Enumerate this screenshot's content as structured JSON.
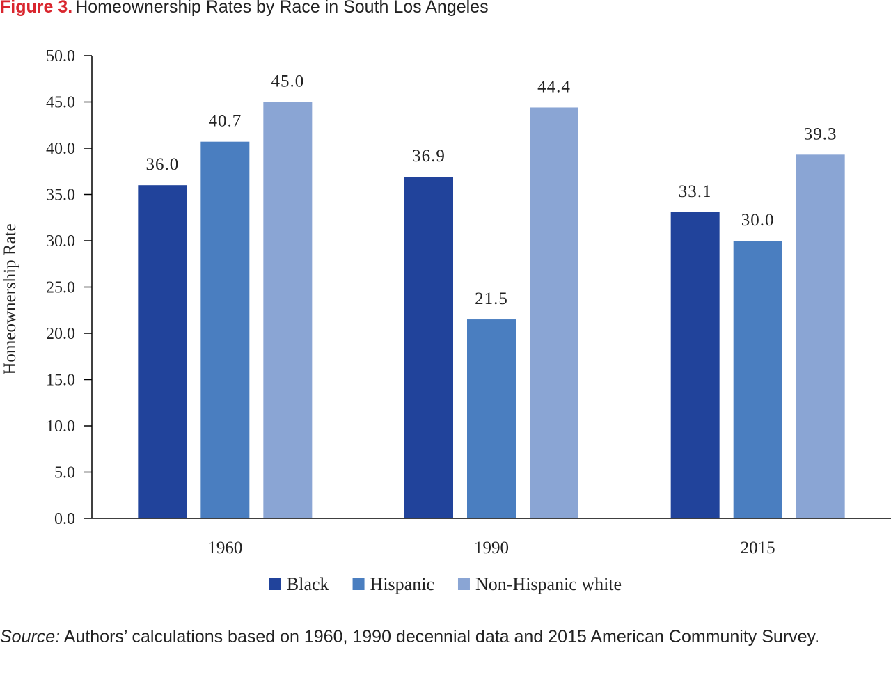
{
  "figure": {
    "label": "Figure 3.",
    "title": "Homeownership Rates by Race in South Los Angeles"
  },
  "chart_data": {
    "type": "bar",
    "title": "Homeownership Rates by Race in South Los Angeles",
    "categories": [
      "1960",
      "1990",
      "2015"
    ],
    "series": [
      {
        "name": "Black",
        "color": "#21439b",
        "values": [
          36.0,
          36.9,
          33.1
        ]
      },
      {
        "name": "Hispanic",
        "color": "#4a7ec0",
        "values": [
          40.7,
          21.5,
          30.0
        ]
      },
      {
        "name": "Non-Hispanic white",
        "color": "#8aa5d4",
        "values": [
          45.0,
          44.4,
          39.3
        ]
      }
    ],
    "xlabel": "",
    "ylabel": "Homeownership Rate",
    "ylim": [
      0,
      50
    ],
    "yticks": [
      "0.0",
      "5.0",
      "10.0",
      "15.0",
      "20.0",
      "25.0",
      "30.0",
      "35.0",
      "40.0",
      "45.0",
      "50.0"
    ],
    "data_labels": true,
    "grid": false,
    "legend": "bottom-center"
  },
  "source": {
    "label": "Source:",
    "text": "Authors’ calculations based on 1960, 1990 decennial data and 2015 American Community Survey."
  }
}
